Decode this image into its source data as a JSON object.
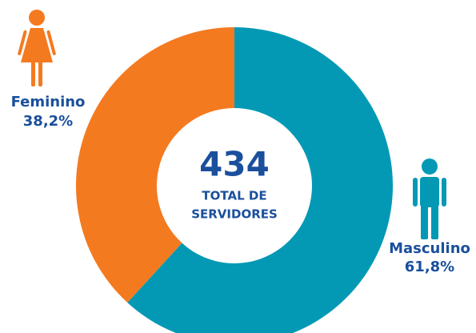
{
  "chart_data": {
    "type": "donut",
    "categories": [
      "Masculino",
      "Feminino"
    ],
    "values": [
      61.8,
      38.2
    ],
    "value_labels": [
      "61,8%",
      "38,2%"
    ],
    "colors": [
      "#0399b5",
      "#f47a20"
    ],
    "center_value": 434,
    "center_label": [
      "TOTAL DE",
      "SERVIDORES"
    ]
  }
}
